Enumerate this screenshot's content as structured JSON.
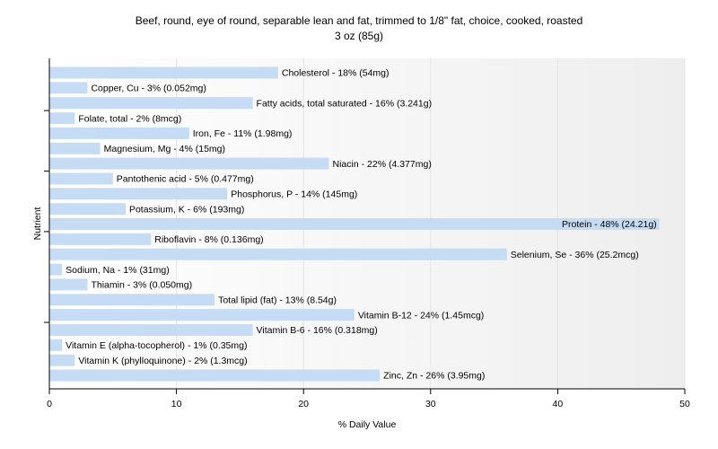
{
  "chart_data": {
    "type": "bar",
    "orientation": "horizontal",
    "title": [
      "Beef, round, eye of round, separable lean and fat, trimmed to 1/8\" fat, choice, cooked, roasted",
      "3 oz (85g)"
    ],
    "xlabel": "% Daily Value",
    "ylabel": "Nutrient",
    "xlim": [
      0,
      50
    ],
    "xticks": [
      0,
      10,
      20,
      30,
      40,
      50
    ],
    "grid": "vertical",
    "bar_color": "#c6dcf5",
    "categories": [
      "Cholesterol",
      "Copper, Cu",
      "Fatty acids, total saturated",
      "Folate, total",
      "Iron, Fe",
      "Magnesium, Mg",
      "Niacin",
      "Pantothenic acid",
      "Phosphorus, P",
      "Potassium, K",
      "Protein",
      "Riboflavin",
      "Selenium, Se",
      "Sodium, Na",
      "Thiamin",
      "Total lipid (fat)",
      "Vitamin B-12",
      "Vitamin B-6",
      "Vitamin E (alpha-tocopherol)",
      "Vitamin K (phylloquinone)",
      "Zinc, Zn"
    ],
    "values": [
      18,
      3,
      16,
      2,
      11,
      4,
      22,
      5,
      14,
      6,
      48,
      8,
      36,
      1,
      3,
      13,
      24,
      16,
      1,
      2,
      26
    ],
    "labels": [
      "Cholesterol - 18% (54mg)",
      "Copper, Cu - 3% (0.052mg)",
      "Fatty acids, total saturated - 16% (3.241g)",
      "Folate, total - 2% (8mcg)",
      "Iron, Fe - 11% (1.98mg)",
      "Magnesium, Mg - 4% (15mg)",
      "Niacin - 22% (4.377mg)",
      "Pantothenic acid - 5% (0.477mg)",
      "Phosphorus, P - 14% (145mg)",
      "Potassium, K - 6% (193mg)",
      "Protein - 48% (24.21g)",
      "Riboflavin - 8% (0.136mg)",
      "Selenium, Se - 36% (25.2mcg)",
      "Sodium, Na - 1% (31mg)",
      "Thiamin - 3% (0.050mg)",
      "Total lipid (fat) - 13% (8.54g)",
      "Vitamin B-12 - 24% (1.45mcg)",
      "Vitamin B-6 - 16% (0.318mg)",
      "Vitamin E (alpha-tocopherol) - 1% (0.35mg)",
      "Vitamin K (phylloquinone) - 2% (1.3mcg)",
      "Zinc, Zn - 26% (3.95mg)"
    ]
  }
}
